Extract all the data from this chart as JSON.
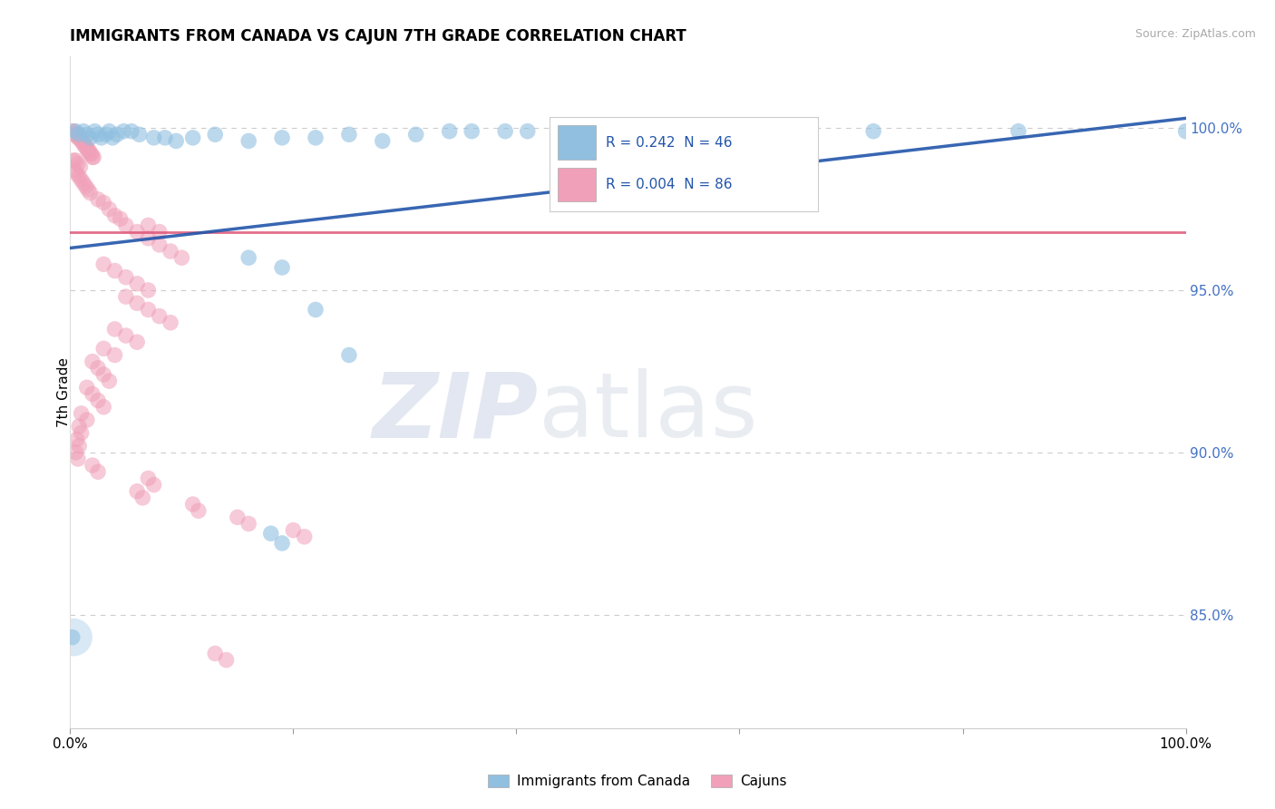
{
  "title": "IMMIGRANTS FROM CANADA VS CAJUN 7TH GRADE CORRELATION CHART",
  "source": "Source: ZipAtlas.com",
  "ylabel": "7th Grade",
  "yticks": [
    0.85,
    0.9,
    0.95,
    1.0
  ],
  "ytick_labels": [
    "85.0%",
    "90.0%",
    "95.0%",
    "100.0%"
  ],
  "xtick_labels": [
    "0.0%",
    "100.0%"
  ],
  "xmin": 0.0,
  "xmax": 1.0,
  "ymin": 0.815,
  "ymax": 1.022,
  "blue_R": 0.242,
  "blue_N": 46,
  "pink_R": 0.004,
  "pink_N": 86,
  "blue_color": "#90bfe0",
  "pink_color": "#f0a0b8",
  "blue_line_color": "#2255aa",
  "pink_line_color": "#dd5577",
  "watermark_zip": "ZIP",
  "watermark_atlas": "atlas",
  "legend_label_blue": "Immigrants from Canada",
  "legend_label_pink": "Cajuns",
  "blue_trend_x": [
    0.0,
    1.0
  ],
  "blue_trend_y": [
    0.963,
    1.003
  ],
  "pink_trend_x": [
    0.0,
    1.0
  ],
  "pink_trend_y": [
    0.968,
    0.968
  ],
  "blue_points": [
    [
      0.005,
      0.999
    ],
    [
      0.008,
      0.998
    ],
    [
      0.012,
      0.999
    ],
    [
      0.015,
      0.998
    ],
    [
      0.018,
      0.997
    ],
    [
      0.022,
      0.999
    ],
    [
      0.025,
      0.998
    ],
    [
      0.028,
      0.997
    ],
    [
      0.032,
      0.998
    ],
    [
      0.035,
      0.999
    ],
    [
      0.038,
      0.997
    ],
    [
      0.042,
      0.998
    ],
    [
      0.048,
      0.999
    ],
    [
      0.055,
      0.999
    ],
    [
      0.062,
      0.998
    ],
    [
      0.075,
      0.997
    ],
    [
      0.085,
      0.997
    ],
    [
      0.095,
      0.996
    ],
    [
      0.11,
      0.997
    ],
    [
      0.13,
      0.998
    ],
    [
      0.16,
      0.996
    ],
    [
      0.19,
      0.997
    ],
    [
      0.22,
      0.997
    ],
    [
      0.25,
      0.998
    ],
    [
      0.28,
      0.996
    ],
    [
      0.31,
      0.998
    ],
    [
      0.34,
      0.999
    ],
    [
      0.36,
      0.999
    ],
    [
      0.39,
      0.999
    ],
    [
      0.41,
      0.999
    ],
    [
      0.44,
      0.999
    ],
    [
      0.16,
      0.96
    ],
    [
      0.19,
      0.957
    ],
    [
      0.22,
      0.944
    ],
    [
      0.25,
      0.93
    ],
    [
      0.18,
      0.875
    ],
    [
      0.19,
      0.872
    ],
    [
      0.002,
      0.843
    ],
    [
      0.52,
      0.999
    ],
    [
      0.55,
      0.999
    ],
    [
      0.6,
      0.999
    ],
    [
      0.65,
      0.999
    ],
    [
      0.72,
      0.999
    ],
    [
      0.85,
      0.999
    ],
    [
      1.0,
      0.999
    ]
  ],
  "pink_points": [
    [
      0.002,
      0.999
    ],
    [
      0.003,
      0.999
    ],
    [
      0.004,
      0.998
    ],
    [
      0.005,
      0.998
    ],
    [
      0.006,
      0.998
    ],
    [
      0.007,
      0.997
    ],
    [
      0.008,
      0.997
    ],
    [
      0.009,
      0.997
    ],
    [
      0.01,
      0.996
    ],
    [
      0.011,
      0.996
    ],
    [
      0.012,
      0.995
    ],
    [
      0.013,
      0.995
    ],
    [
      0.014,
      0.994
    ],
    [
      0.015,
      0.994
    ],
    [
      0.016,
      0.993
    ],
    [
      0.017,
      0.993
    ],
    [
      0.018,
      0.992
    ],
    [
      0.019,
      0.992
    ],
    [
      0.02,
      0.991
    ],
    [
      0.021,
      0.991
    ],
    [
      0.003,
      0.99
    ],
    [
      0.005,
      0.99
    ],
    [
      0.007,
      0.989
    ],
    [
      0.009,
      0.988
    ],
    [
      0.004,
      0.987
    ],
    [
      0.006,
      0.986
    ],
    [
      0.008,
      0.985
    ],
    [
      0.01,
      0.984
    ],
    [
      0.012,
      0.983
    ],
    [
      0.014,
      0.982
    ],
    [
      0.016,
      0.981
    ],
    [
      0.018,
      0.98
    ],
    [
      0.025,
      0.978
    ],
    [
      0.03,
      0.977
    ],
    [
      0.035,
      0.975
    ],
    [
      0.04,
      0.973
    ],
    [
      0.045,
      0.972
    ],
    [
      0.05,
      0.97
    ],
    [
      0.06,
      0.968
    ],
    [
      0.07,
      0.966
    ],
    [
      0.08,
      0.964
    ],
    [
      0.09,
      0.962
    ],
    [
      0.1,
      0.96
    ],
    [
      0.03,
      0.958
    ],
    [
      0.04,
      0.956
    ],
    [
      0.05,
      0.954
    ],
    [
      0.06,
      0.952
    ],
    [
      0.07,
      0.95
    ],
    [
      0.05,
      0.948
    ],
    [
      0.06,
      0.946
    ],
    [
      0.07,
      0.944
    ],
    [
      0.08,
      0.942
    ],
    [
      0.09,
      0.94
    ],
    [
      0.04,
      0.938
    ],
    [
      0.05,
      0.936
    ],
    [
      0.06,
      0.934
    ],
    [
      0.07,
      0.97
    ],
    [
      0.08,
      0.968
    ],
    [
      0.03,
      0.932
    ],
    [
      0.04,
      0.93
    ],
    [
      0.02,
      0.928
    ],
    [
      0.025,
      0.926
    ],
    [
      0.03,
      0.924
    ],
    [
      0.035,
      0.922
    ],
    [
      0.015,
      0.92
    ],
    [
      0.02,
      0.918
    ],
    [
      0.025,
      0.916
    ],
    [
      0.03,
      0.914
    ],
    [
      0.01,
      0.912
    ],
    [
      0.015,
      0.91
    ],
    [
      0.008,
      0.908
    ],
    [
      0.01,
      0.906
    ],
    [
      0.006,
      0.904
    ],
    [
      0.008,
      0.902
    ],
    [
      0.005,
      0.9
    ],
    [
      0.007,
      0.898
    ],
    [
      0.02,
      0.896
    ],
    [
      0.025,
      0.894
    ],
    [
      0.07,
      0.892
    ],
    [
      0.075,
      0.89
    ],
    [
      0.06,
      0.888
    ],
    [
      0.065,
      0.886
    ],
    [
      0.11,
      0.884
    ],
    [
      0.115,
      0.882
    ],
    [
      0.15,
      0.88
    ],
    [
      0.16,
      0.878
    ],
    [
      0.2,
      0.876
    ],
    [
      0.21,
      0.874
    ],
    [
      0.13,
      0.838
    ],
    [
      0.14,
      0.836
    ]
  ]
}
